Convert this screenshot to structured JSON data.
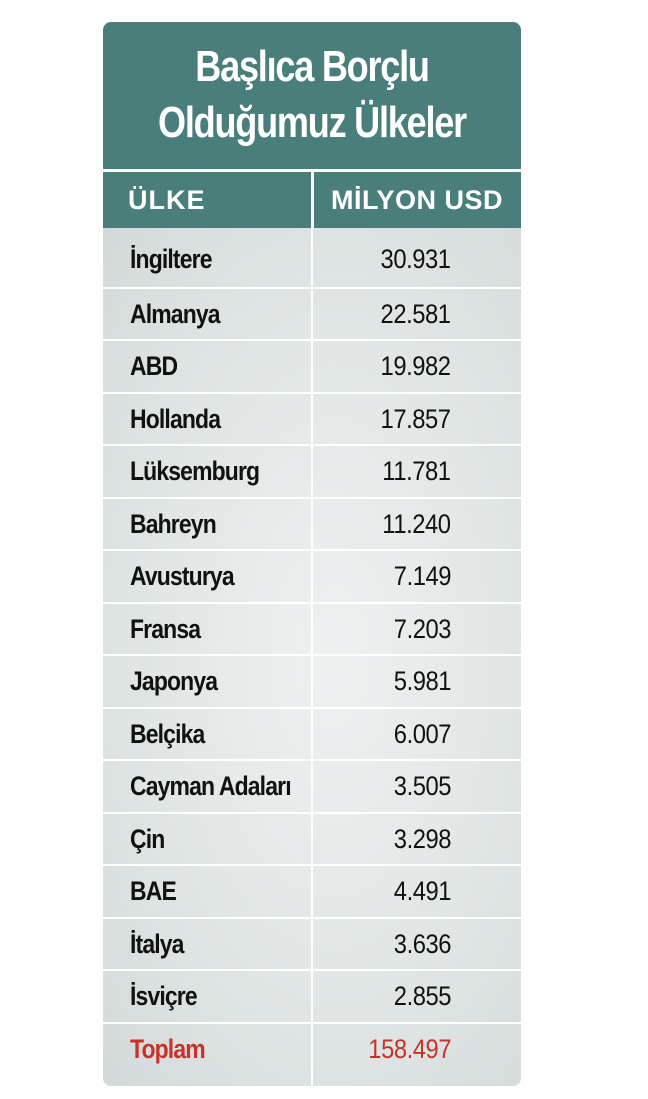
{
  "chart_data": {
    "type": "table",
    "title": "Başlıca Borçlu Olduğumuz Ülkeler",
    "title_lines": [
      "Başlıca Borçlu",
      "Olduğumuz Ülkeler"
    ],
    "columns": [
      "ÜLKE",
      "MİLYON USD"
    ],
    "rows": [
      {
        "country": "İngiltere",
        "value": "30.931"
      },
      {
        "country": "Almanya",
        "value": "22.581"
      },
      {
        "country": "ABD",
        "value": "19.982"
      },
      {
        "country": "Hollanda",
        "value": "17.857"
      },
      {
        "country": "Lüksemburg",
        "value": "11.781"
      },
      {
        "country": "Bahreyn",
        "value": "11.240"
      },
      {
        "country": "Avusturya",
        "value": "7.149"
      },
      {
        "country": "Fransa",
        "value": "7.203"
      },
      {
        "country": "Japonya",
        "value": "5.981"
      },
      {
        "country": "Belçika",
        "value": "6.007"
      },
      {
        "country": "Cayman Adaları",
        "value": "3.505"
      },
      {
        "country": "Çin",
        "value": "3.298"
      },
      {
        "country": "BAE",
        "value": "4.491"
      },
      {
        "country": "İtalya",
        "value": "3.636"
      },
      {
        "country": "İsviçre",
        "value": "2.855"
      }
    ],
    "total": {
      "label": "Toplam",
      "value": "158.497"
    },
    "colors": {
      "header_bg": "#497e7a",
      "header_text": "#ffffff",
      "total_text": "#c8322a",
      "body_text": "#111111"
    }
  }
}
